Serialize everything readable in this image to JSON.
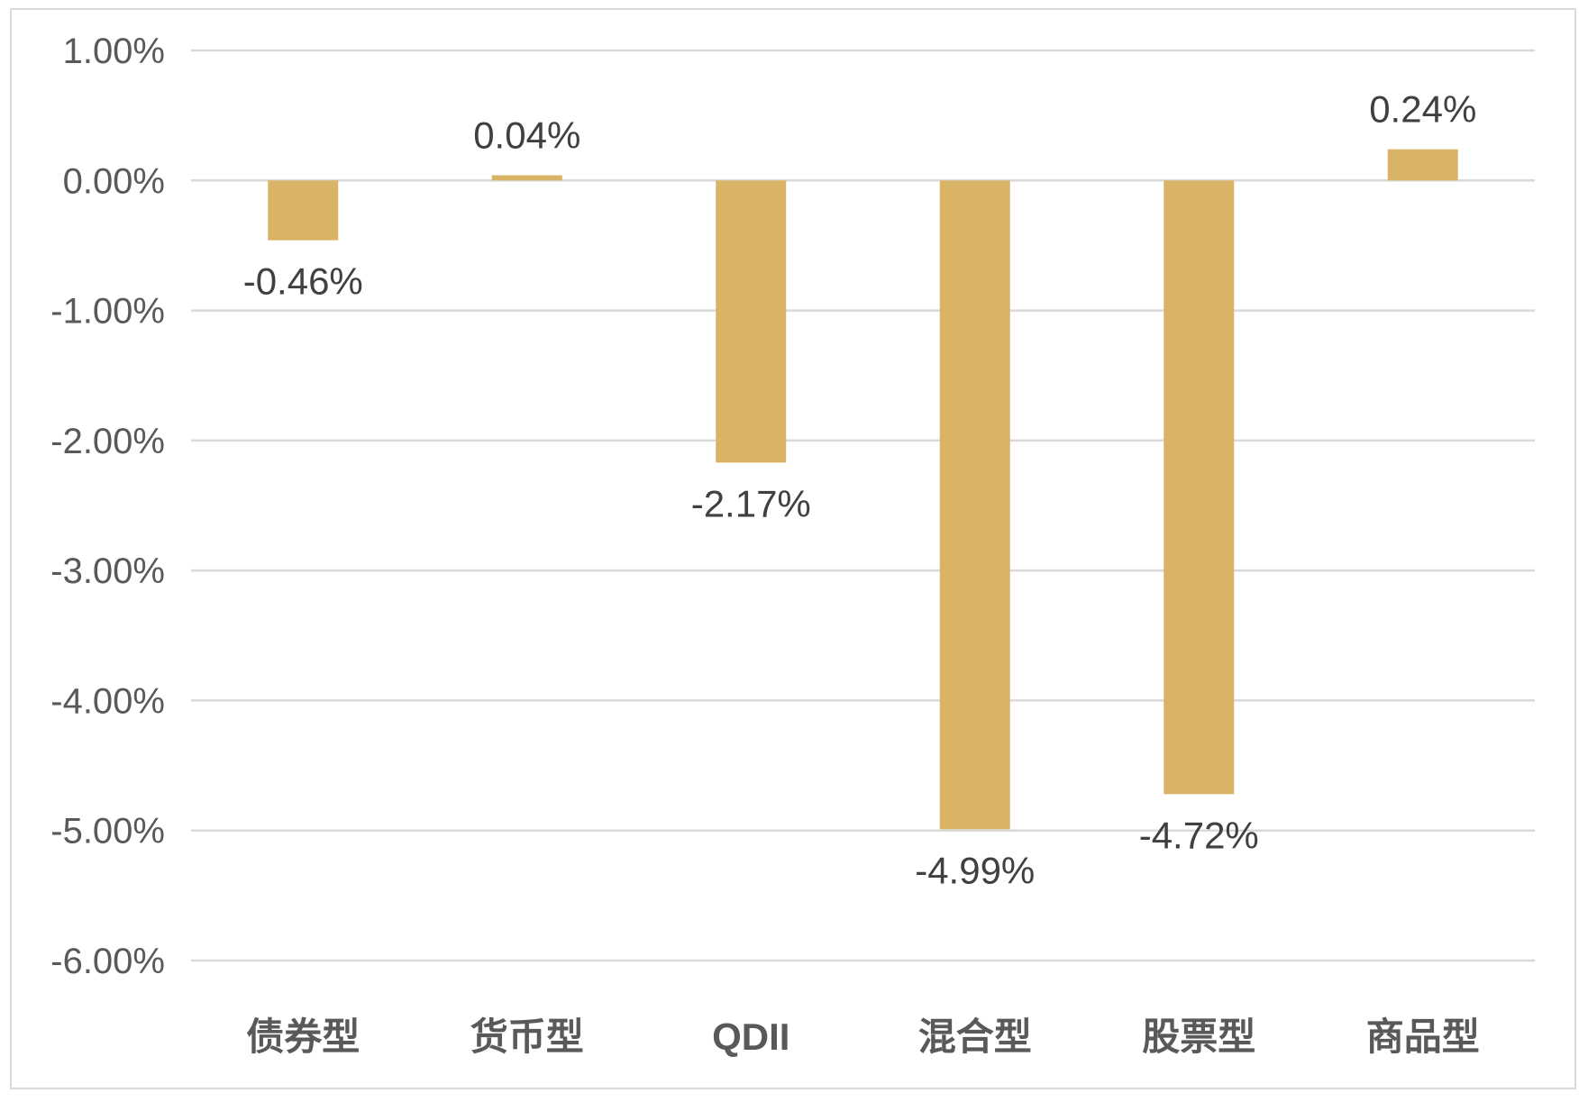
{
  "chart_data": {
    "type": "bar",
    "categories": [
      "债券型",
      "货币型",
      "QDII",
      "混合型",
      "股票型",
      "商品型"
    ],
    "values": [
      -0.46,
      0.04,
      -2.17,
      -4.99,
      -4.72,
      0.24
    ],
    "data_labels": [
      "-0.46%",
      "0.04%",
      "-2.17%",
      "-4.99%",
      "-4.72%",
      "0.24%"
    ],
    "title": "",
    "xlabel": "",
    "ylabel": "",
    "ylim": [
      -6,
      1
    ],
    "yticks": [
      1,
      0,
      -1,
      -2,
      -3,
      -4,
      -5,
      -6
    ],
    "ytick_labels": [
      "1.00%",
      "0.00%",
      "-1.00%",
      "-2.00%",
      "-3.00%",
      "-4.00%",
      "-5.00%",
      "-6.00%"
    ],
    "grid": true,
    "legend": "none",
    "bar_color": "#D9B366",
    "grid_color": "#D9D9D9",
    "text_color": "#404040"
  }
}
